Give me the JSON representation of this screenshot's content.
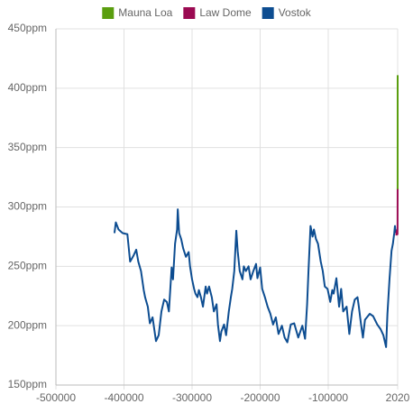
{
  "chart_data": {
    "type": "line",
    "xlim": [
      -500000,
      2020
    ],
    "xticks": [
      -500000,
      -400000,
      -300000,
      -200000,
      -100000,
      2020
    ],
    "ylim": [
      150,
      450
    ],
    "yticks": [
      {
        "value": 150,
        "label": "150ppm"
      },
      {
        "value": 200,
        "label": "200ppm"
      },
      {
        "value": 250,
        "label": "250ppm"
      },
      {
        "value": 300,
        "label": "300ppm"
      },
      {
        "value": 350,
        "label": "350ppm"
      },
      {
        "value": 400,
        "label": "400ppm"
      },
      {
        "value": 450,
        "label": "450ppm"
      }
    ],
    "grid": true,
    "legend": "top",
    "series": [
      {
        "name": "Mauna Loa",
        "color": "#5a9e0f",
        "x": [
          1958,
          1970,
          1980,
          1990,
          2000,
          2010,
          2020
        ],
        "values": [
          315,
          325,
          338,
          354,
          369,
          389,
          411
        ]
      },
      {
        "name": "Law Dome",
        "color": "#9b0a52",
        "x": [
          0,
          500,
          1000,
          1500,
          1750,
          1850,
          1900,
          1950,
          1975
        ],
        "values": [
          276,
          279,
          280,
          281,
          277,
          285,
          296,
          311,
          316
        ]
      },
      {
        "name": "Vostok",
        "color": "#0d4d91",
        "x": [
          -414000,
          -412000,
          -408000,
          -402000,
          -395000,
          -391000,
          -386000,
          -382000,
          -379000,
          -375000,
          -371000,
          -369000,
          -365000,
          -362000,
          -358000,
          -353000,
          -349000,
          -345000,
          -341000,
          -337000,
          -334000,
          -330000,
          -328000,
          -325000,
          -322000,
          -321000,
          -319000,
          -316000,
          -313000,
          -309000,
          -305000,
          -303000,
          -300000,
          -297000,
          -295000,
          -292000,
          -290000,
          -287000,
          -284000,
          -280000,
          -278000,
          -275000,
          -271000,
          -268000,
          -264000,
          -262000,
          -259000,
          -257000,
          -253000,
          -250000,
          -246000,
          -243000,
          -241000,
          -238000,
          -235000,
          -233000,
          -230000,
          -226000,
          -224000,
          -221000,
          -217000,
          -214000,
          -210000,
          -206000,
          -204000,
          -200000,
          -197000,
          -193000,
          -189000,
          -185000,
          -181000,
          -177000,
          -173000,
          -168000,
          -164000,
          -160000,
          -155000,
          -150000,
          -144000,
          -138000,
          -134000,
          -131000,
          -129000,
          -126000,
          -123000,
          -121000,
          -118000,
          -115000,
          -111000,
          -108000,
          -105000,
          -101000,
          -97000,
          -94000,
          -92000,
          -88000,
          -84000,
          -81000,
          -78000,
          -73000,
          -69000,
          -65000,
          -61000,
          -57000,
          -55000,
          -52000,
          -49000,
          -46000,
          -39000,
          -34000,
          -28000,
          -23000,
          -19000,
          -15000,
          -13000,
          -10000,
          -7000,
          -5000,
          -3000,
          -2000,
          -1000
        ],
        "values": [
          278,
          287,
          281,
          278,
          277,
          254,
          259,
          264,
          254,
          246,
          230,
          224,
          216,
          202,
          207,
          187,
          192,
          212,
          222,
          220,
          212,
          249,
          239,
          269,
          281,
          298,
          278,
          273,
          265,
          258,
          262,
          250,
          239,
          231,
          227,
          224,
          230,
          224,
          216,
          233,
          227,
          233,
          224,
          212,
          218,
          201,
          187,
          195,
          201,
          192,
          212,
          224,
          231,
          246,
          280,
          263,
          246,
          239,
          250,
          246,
          250,
          239,
          246,
          252,
          240,
          249,
          231,
          224,
          216,
          210,
          201,
          207,
          193,
          200,
          190,
          186,
          201,
          202,
          190,
          200,
          189,
          218,
          246,
          284,
          275,
          281,
          273,
          269,
          254,
          246,
          233,
          231,
          220,
          230,
          227,
          240,
          216,
          231,
          212,
          216,
          193,
          212,
          222,
          224,
          216,
          202,
          190,
          205,
          210,
          208,
          201,
          197,
          192,
          182,
          210,
          239,
          263,
          269,
          278,
          284,
          278
        ]
      }
    ]
  }
}
